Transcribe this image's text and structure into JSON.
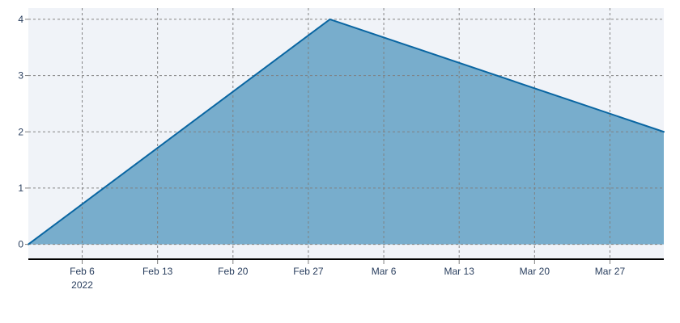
{
  "chart_data": {
    "type": "area",
    "title": "",
    "xlabel": "",
    "ylabel": "",
    "x": [
      "2022-02-01",
      "2022-03-01",
      "2022-04-01"
    ],
    "y": [
      0,
      4,
      2
    ],
    "x_range": [
      "2022-02-01",
      "2022-04-01"
    ],
    "y_range": [
      -0.25,
      4.2
    ],
    "x_ticks": [
      {
        "date": "2022-02-06",
        "label": "Feb 6",
        "sublabel": "2022"
      },
      {
        "date": "2022-02-13",
        "label": "Feb 13",
        "sublabel": ""
      },
      {
        "date": "2022-02-20",
        "label": "Feb 20",
        "sublabel": ""
      },
      {
        "date": "2022-02-27",
        "label": "Feb 27",
        "sublabel": ""
      },
      {
        "date": "2022-03-06",
        "label": "Mar 6",
        "sublabel": ""
      },
      {
        "date": "2022-03-13",
        "label": "Mar 13",
        "sublabel": ""
      },
      {
        "date": "2022-03-20",
        "label": "Mar 20",
        "sublabel": ""
      },
      {
        "date": "2022-03-27",
        "label": "Mar 27",
        "sublabel": ""
      }
    ],
    "y_ticks": [
      0,
      1,
      2,
      3,
      4
    ],
    "grid": true,
    "colors": {
      "plot_bg": "#f0f3f8",
      "fill": "#78adcc",
      "line": "#0a66a2",
      "axis": "#000000"
    }
  }
}
